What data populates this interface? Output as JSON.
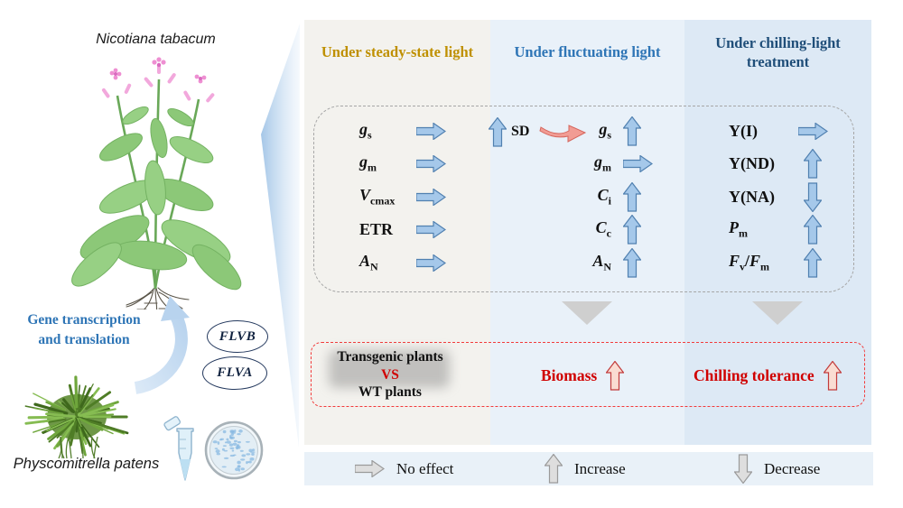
{
  "left": {
    "nicotiana_label": "Nicotiana tabacum",
    "physcomitrella_label": "Physcomitrella patens",
    "gene_caption": {
      "line1": "Gene transcription",
      "line2": "and translation"
    },
    "gene_ovals": [
      "FLVB",
      "FLVA"
    ]
  },
  "panels": [
    {
      "title": "Under steady-state light",
      "title_color": "#BF9000",
      "rows": [
        {
          "label": [
            {
              "t": "g",
              "i": 1
            },
            {
              "t": "s",
              "s": 1
            }
          ],
          "arrow": "right"
        },
        {
          "label": [
            {
              "t": "g",
              "i": 1
            },
            {
              "t": "m",
              "s": 1
            }
          ],
          "arrow": "right"
        },
        {
          "label": [
            {
              "t": "V",
              "i": 1
            },
            {
              "t": "cmax",
              "s": 1
            }
          ],
          "arrow": "right"
        },
        {
          "label": [
            {
              "t": "ETR"
            }
          ],
          "arrow": "right"
        },
        {
          "label": [
            {
              "t": "A",
              "i": 1
            },
            {
              "t": "N",
              "s": 1
            }
          ],
          "arrow": "right"
        }
      ]
    },
    {
      "title": "Under fluctuating light",
      "title_color": "#2E75B6",
      "sd_label": "SD",
      "rows": [
        {
          "label": [
            {
              "t": "g",
              "i": 1
            },
            {
              "t": "s",
              "s": 1
            }
          ],
          "arrow": "up"
        },
        {
          "label": [
            {
              "t": "g",
              "i": 1
            },
            {
              "t": "m",
              "s": 1
            }
          ],
          "arrow": "right"
        },
        {
          "label": [
            {
              "t": "C",
              "i": 1
            },
            {
              "t": "i",
              "s": 1
            }
          ],
          "arrow": "up"
        },
        {
          "label": [
            {
              "t": "C",
              "i": 1
            },
            {
              "t": "c",
              "s": 1
            }
          ],
          "arrow": "up"
        },
        {
          "label": [
            {
              "t": "A",
              "i": 1
            },
            {
              "t": "N",
              "s": 1
            }
          ],
          "arrow": "up"
        }
      ]
    },
    {
      "title": "Under chilling-light treatment",
      "title_color": "#1F4E79",
      "rows": [
        {
          "label": [
            {
              "t": "Y(I)"
            }
          ],
          "arrow": "right"
        },
        {
          "label": [
            {
              "t": "Y(ND)"
            }
          ],
          "arrow": "up"
        },
        {
          "label": [
            {
              "t": "Y(NA)"
            }
          ],
          "arrow": "down"
        },
        {
          "label": [
            {
              "t": "P",
              "i": 1
            },
            {
              "t": "m",
              "s": 1
            }
          ],
          "arrow": "up"
        },
        {
          "label": [
            {
              "t": "F",
              "i": 1
            },
            {
              "t": "v",
              "s": 1
            },
            {
              "t": "/"
            },
            {
              "t": "F",
              "i": 1
            },
            {
              "t": "m",
              "s": 1
            }
          ],
          "arrow": "up"
        }
      ]
    }
  ],
  "summary": {
    "compare": [
      "Transgenic plants",
      "VS",
      "WT plants"
    ],
    "items": [
      {
        "label": "Biomass",
        "arrow": "up"
      },
      {
        "label": "Chilling tolerance",
        "arrow": "up"
      }
    ]
  },
  "legend": [
    {
      "label": "No effect",
      "arrow": "right"
    },
    {
      "label": "Increase",
      "arrow": "up"
    },
    {
      "label": "Decrease",
      "arrow": "down"
    }
  ],
  "colors": {
    "steady_title": "#BF9000",
    "fluctuating_title": "#2E75B6",
    "chilling_title": "#1F4E79",
    "panel1_bg": "#F3F2EE",
    "panel2_bg": "#E9F1F9",
    "panel3_bg": "#DDE9F5",
    "legend_bg": "#E9F1F8",
    "blue_arrow_fill": "#A5C8EA",
    "blue_arrow_stroke": "#5080B0",
    "gray_arrow_fill": "#DEDEDE",
    "pink_arrow_fill": "#FADCD2",
    "red_accent": "#D00000"
  }
}
